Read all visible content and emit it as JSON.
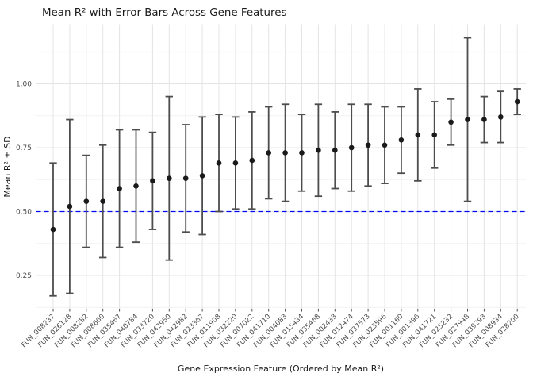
{
  "chart_data": {
    "type": "scatter",
    "subtype": "point-with-errorbars",
    "title": "Mean R² with Error Bars Across Gene Features",
    "xlabel": "Gene Expression Feature (Ordered by Mean R²)",
    "ylabel": "Mean R² ± SD",
    "categories": [
      "FUN_008237",
      "FUN_026128",
      "FUN_008282",
      "FUN_008660",
      "FUN_035467",
      "FUN_040784",
      "FUN_033720",
      "FUN_042950",
      "FUN_042982",
      "FUN_023367",
      "FUN_011908",
      "FUN_032220",
      "FUN_007022",
      "FUN_041710",
      "FUN_004083",
      "FUN_015434",
      "FUN_035468",
      "FUN_002433",
      "FUN_012474",
      "FUN_037573",
      "FUN_023596",
      "FUN_001160",
      "FUN_001396",
      "FUN_041721",
      "FUN_025232",
      "FUN_027948",
      "FUN_039293",
      "FUN_008934",
      "FUN_028200"
    ],
    "series": [
      {
        "name": "Mean R²",
        "means": [
          0.43,
          0.52,
          0.54,
          0.54,
          0.59,
          0.6,
          0.62,
          0.63,
          0.63,
          0.64,
          0.69,
          0.69,
          0.7,
          0.73,
          0.73,
          0.73,
          0.74,
          0.74,
          0.75,
          0.76,
          0.76,
          0.78,
          0.8,
          0.8,
          0.85,
          0.86,
          0.86,
          0.87,
          0.93
        ],
        "sd": [
          0.26,
          0.34,
          0.18,
          0.22,
          0.23,
          0.22,
          0.19,
          0.32,
          0.21,
          0.23,
          0.19,
          0.18,
          0.19,
          0.18,
          0.19,
          0.15,
          0.18,
          0.15,
          0.17,
          0.16,
          0.15,
          0.13,
          0.18,
          0.13,
          0.09,
          0.32,
          0.09,
          0.1,
          0.05
        ]
      }
    ],
    "reference_line": {
      "y": 0.5,
      "style": "dashed",
      "color": "#0000ff"
    },
    "yticks": {
      "values": [
        0.25,
        0.5,
        0.75,
        1.0
      ],
      "labels": [
        "0.25",
        "0.50",
        "0.75",
        "1.00"
      ]
    },
    "yticks_minor": [
      0.125,
      0.375,
      0.625,
      0.875,
      1.125
    ],
    "ylim": [
      0.12,
      1.23
    ],
    "grid": true,
    "legend": "none",
    "colors": {
      "point": "#1a1a1a",
      "errorbar": "#4d4d4d",
      "grid_major": "#e4e4e4",
      "grid_minor": "#f2f2f2",
      "tick_text": "#4d4d4d",
      "title_text": "#1a1a1a",
      "background": "#ffffff"
    }
  }
}
